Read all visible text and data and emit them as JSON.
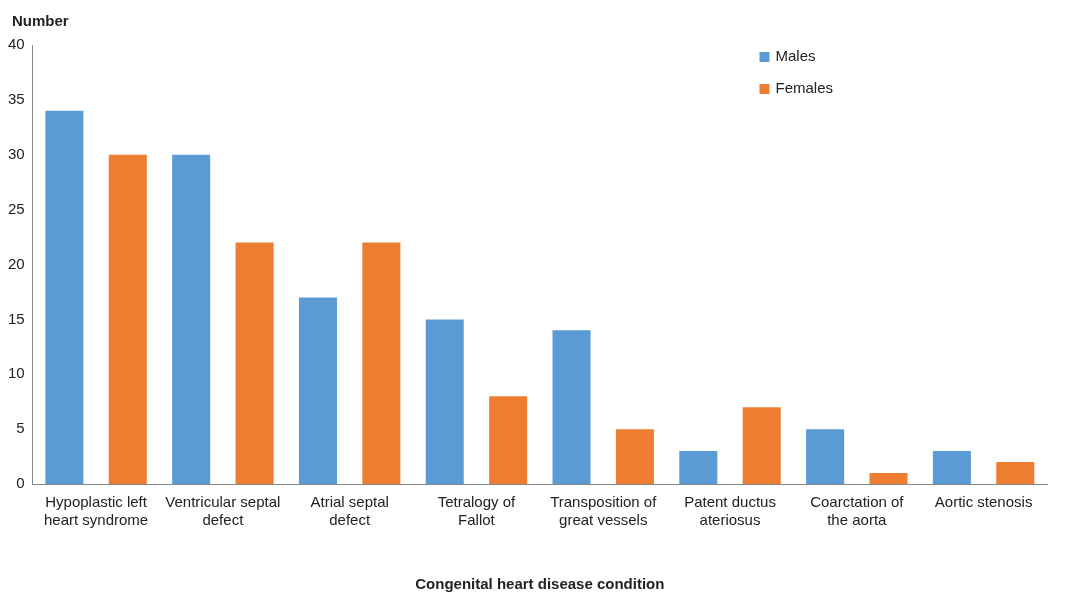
{
  "chart_data": {
    "type": "bar",
    "ylabel": "Number",
    "xlabel": "Congenital heart disease condition",
    "categories": [
      "Hypoplastic left heart syndrome",
      "Ventricular septal defect",
      "Atrial septal defect",
      "Tetralogy of Fallot",
      "Transposition of great vessels",
      "Patent ductus ateriosus",
      "Coarctation of the aorta",
      "Aortic stenosis"
    ],
    "series": [
      {
        "name": "Males",
        "color": "#5b9bd5",
        "values": [
          34,
          30,
          17,
          15,
          14,
          3,
          5,
          3
        ]
      },
      {
        "name": "Females",
        "color": "#ed7d31",
        "values": [
          30,
          22,
          22,
          8,
          5,
          7,
          1,
          2
        ]
      }
    ],
    "ylim": [
      0,
      40
    ],
    "yticks": [
      0,
      5,
      10,
      15,
      20,
      25,
      30,
      35,
      40
    ],
    "grid": false,
    "legend": "top right"
  }
}
